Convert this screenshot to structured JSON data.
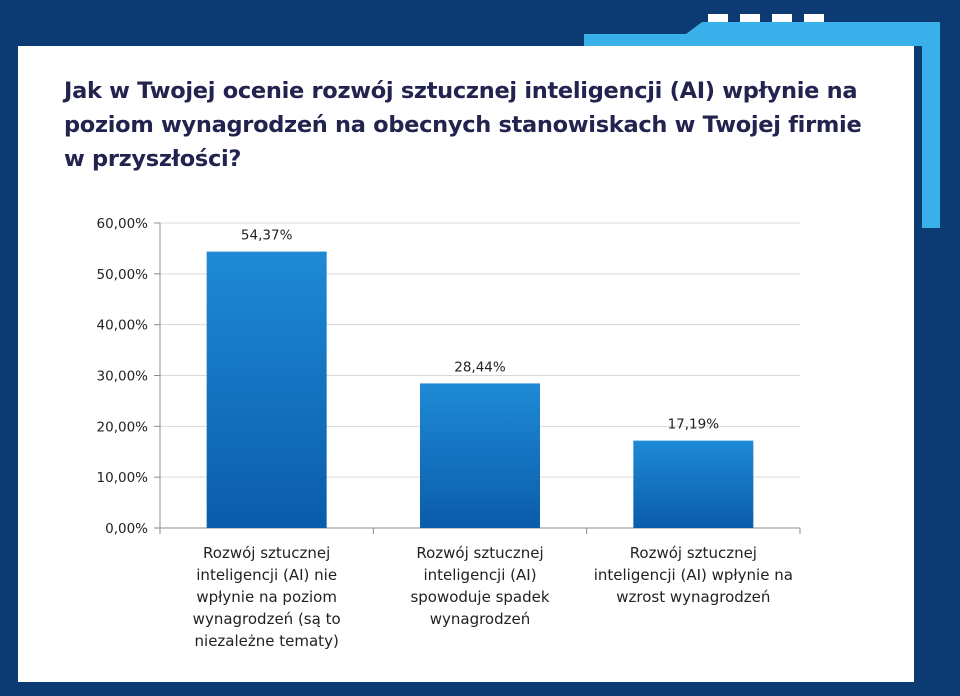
{
  "page": {
    "title": "Jak w Twojej ocenie rozwój sztucznej inteligencji (AI) wpłynie na poziom wynagrodzeń na obecnych stanowiskach w Twojej firmie w przyszłości?"
  },
  "colors": {
    "background": "#0c3a73",
    "accent": "#39b0ea",
    "panel": "#ffffff",
    "bar_top": "#1e8ad6",
    "bar_bottom": "#0b5cab",
    "title_text": "#23234f"
  },
  "chart_data": {
    "type": "bar",
    "categories": [
      "Rozwój sztucznej inteligencji (AI) nie wpłynie na poziom wynagrodzeń (są to niezależne tematy)",
      "Rozwój sztucznej inteligencji (AI) spowoduje spadek wynagrodzeń",
      "Rozwój sztucznej inteligencji (AI) wpłynie na wzrost wynagrodzeń"
    ],
    "category_lines": [
      [
        "Rozwój sztucznej",
        "inteligencji (AI) nie",
        "wpłynie na poziom",
        "wynagrodzeń (są to",
        "niezależne tematy)"
      ],
      [
        "Rozwój sztucznej",
        "inteligencji (AI)",
        "spowoduje spadek",
        "wynagrodzeń"
      ],
      [
        "Rozwój sztucznej",
        "inteligencji (AI) wpłynie na",
        "wzrost wynagrodzeń"
      ]
    ],
    "values": [
      54.37,
      28.44,
      17.19
    ],
    "data_labels": [
      "54,37%",
      "28,44%",
      "17,19%"
    ],
    "ylim": [
      0,
      60
    ],
    "yticks": [
      0,
      10,
      20,
      30,
      40,
      50,
      60
    ],
    "ytick_labels": [
      "0,00%",
      "10,00%",
      "20,00%",
      "30,00%",
      "40,00%",
      "50,00%",
      "60,00%"
    ],
    "grid": true,
    "legend": false
  }
}
